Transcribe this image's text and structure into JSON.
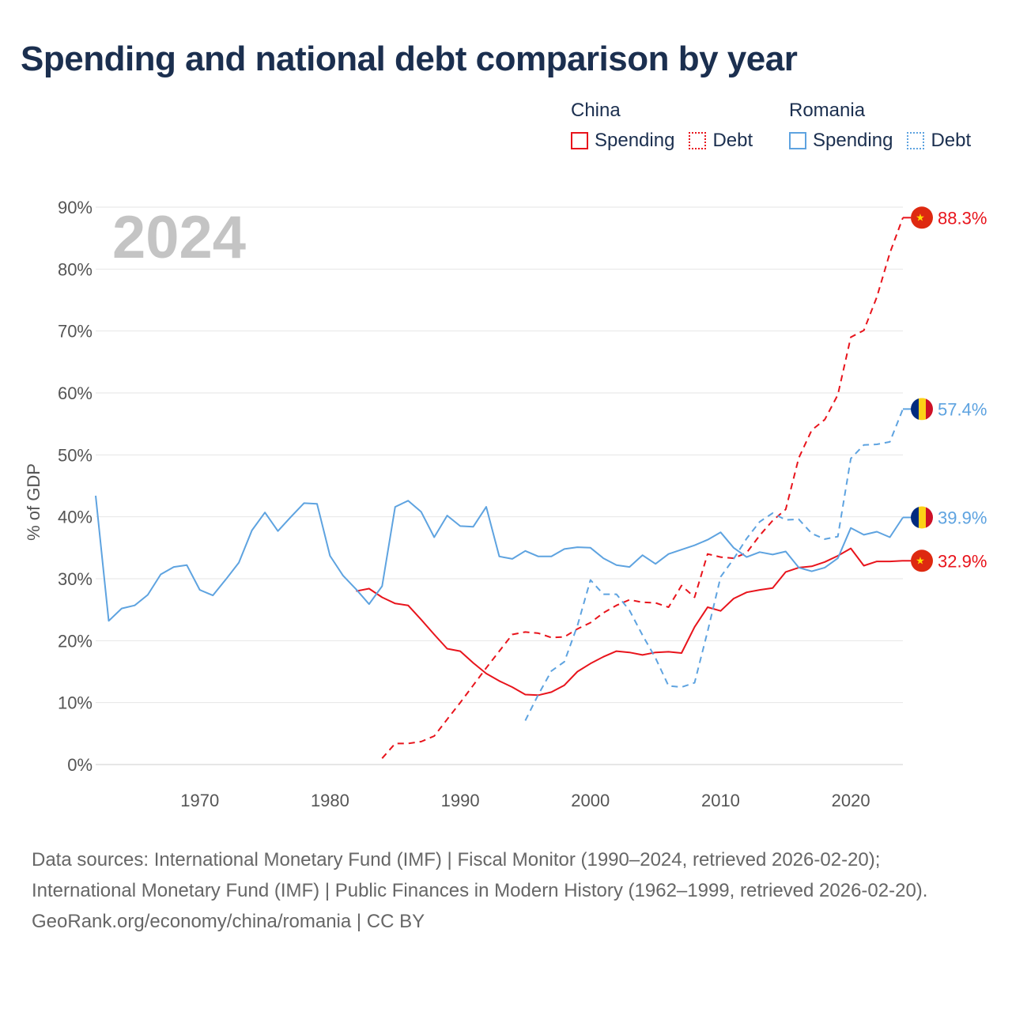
{
  "title": "Spending and national debt comparison by year",
  "legend": {
    "china": {
      "title": "China",
      "spending_label": "Spending",
      "debt_label": "Debt"
    },
    "romania": {
      "title": "Romania",
      "spending_label": "Spending",
      "debt_label": "Debt"
    }
  },
  "colors": {
    "china": "#e8141c",
    "romania": "#5ea3e0"
  },
  "chart_data": {
    "type": "line",
    "title": "Spending and national debt comparison by year",
    "year_label": "2024",
    "ylabel": "% of GDP",
    "xlabel": "",
    "xlim": [
      1962,
      2024
    ],
    "ylim": [
      0,
      90
    ],
    "x_ticks": [
      1970,
      1980,
      1990,
      2000,
      2010,
      2020
    ],
    "x_tick_labels": [
      "1970",
      "1980",
      "1990",
      "2000",
      "2010",
      "2020"
    ],
    "y_ticks": [
      0,
      10,
      20,
      30,
      40,
      50,
      60,
      70,
      80,
      90
    ],
    "y_tick_labels": [
      "0%",
      "10%",
      "20%",
      "30%",
      "40%",
      "50%",
      "60%",
      "70%",
      "80%",
      "90%"
    ],
    "grid": true,
    "series": [
      {
        "name": "China Spending",
        "country": "china",
        "style": "solid",
        "end_label": "32.9%",
        "x": [
          1982,
          1983,
          1984,
          1985,
          1986,
          1987,
          1988,
          1989,
          1990,
          1991,
          1992,
          1993,
          1994,
          1995,
          1996,
          1997,
          1998,
          1999,
          2000,
          2001,
          2002,
          2003,
          2004,
          2005,
          2006,
          2007,
          2008,
          2009,
          2010,
          2011,
          2012,
          2013,
          2014,
          2015,
          2016,
          2017,
          2018,
          2019,
          2020,
          2021,
          2022,
          2023,
          2024
        ],
        "values": [
          28.0,
          28.4,
          27.0,
          26.0,
          25.7,
          23.4,
          21.0,
          18.7,
          18.3,
          16.4,
          14.7,
          13.5,
          12.5,
          11.3,
          11.2,
          11.7,
          12.8,
          15.0,
          16.3,
          17.4,
          18.3,
          18.1,
          17.7,
          18.1,
          18.2,
          18.0,
          22.2,
          25.4,
          24.8,
          26.8,
          27.8,
          28.2,
          28.5,
          31.1,
          31.8,
          32.0,
          32.7,
          33.7,
          34.9,
          32.1,
          32.8,
          32.8,
          32.9
        ]
      },
      {
        "name": "China Debt",
        "country": "china",
        "style": "dashed",
        "end_label": "88.3%",
        "x": [
          1984,
          1985,
          1986,
          1987,
          1988,
          1989,
          1990,
          1991,
          1992,
          1993,
          1994,
          1995,
          1996,
          1997,
          1998,
          1999,
          2000,
          2001,
          2002,
          2003,
          2004,
          2005,
          2006,
          2007,
          2008,
          2009,
          2010,
          2011,
          2012,
          2013,
          2014,
          2015,
          2016,
          2017,
          2018,
          2019,
          2020,
          2021,
          2022,
          2023,
          2024
        ],
        "values": [
          1.0,
          3.4,
          3.4,
          3.7,
          4.6,
          7.3,
          10.0,
          12.8,
          15.6,
          18.3,
          21.0,
          21.4,
          21.2,
          20.5,
          20.6,
          21.9,
          22.9,
          24.5,
          25.7,
          26.6,
          26.2,
          26.1,
          25.4,
          28.9,
          27.0,
          34.0,
          33.5,
          33.3,
          34.2,
          37.0,
          39.4,
          41.2,
          49.5,
          54.0,
          55.7,
          59.7,
          69.0,
          70.1,
          75.5,
          82.6,
          88.3
        ]
      },
      {
        "name": "Romania Spending",
        "country": "romania",
        "style": "solid",
        "end_label": "39.9%",
        "x": [
          1962,
          1963,
          1964,
          1965,
          1966,
          1967,
          1968,
          1969,
          1970,
          1971,
          1972,
          1973,
          1974,
          1975,
          1976,
          1977,
          1978,
          1979,
          1980,
          1981,
          1982,
          1983,
          1984,
          1985,
          1986,
          1987,
          1988,
          1989,
          1990,
          1991,
          1992,
          1993,
          1994,
          1995,
          1996,
          1997,
          1998,
          1999,
          2000,
          2001,
          2002,
          2003,
          2004,
          2005,
          2006,
          2007,
          2008,
          2009,
          2010,
          2011,
          2012,
          2013,
          2014,
          2015,
          2016,
          2017,
          2018,
          2019,
          2020,
          2021,
          2022,
          2023,
          2024
        ],
        "values": [
          43.4,
          23.2,
          25.2,
          25.7,
          27.4,
          30.7,
          31.9,
          32.2,
          28.2,
          27.3,
          29.9,
          32.6,
          37.8,
          40.7,
          37.7,
          40.0,
          42.2,
          42.1,
          33.7,
          30.5,
          28.3,
          25.9,
          28.8,
          41.6,
          42.6,
          40.8,
          36.7,
          40.2,
          38.5,
          38.4,
          41.6,
          33.6,
          33.2,
          34.5,
          33.6,
          33.6,
          34.8,
          35.1,
          35.0,
          33.3,
          32.2,
          31.9,
          33.8,
          32.4,
          34.0,
          34.7,
          35.4,
          36.3,
          37.5,
          35.0,
          33.5,
          34.3,
          33.9,
          34.4,
          31.8,
          31.2,
          31.8,
          33.3,
          38.2,
          37.1,
          37.6,
          36.7,
          39.9
        ]
      },
      {
        "name": "Romania Debt",
        "country": "romania",
        "style": "dashed",
        "end_label": "57.4%",
        "x": [
          1995,
          1996,
          1997,
          1998,
          1999,
          2000,
          2001,
          2002,
          2003,
          2004,
          2005,
          2006,
          2007,
          2008,
          2009,
          2010,
          2011,
          2012,
          2013,
          2014,
          2015,
          2016,
          2017,
          2018,
          2019,
          2020,
          2021,
          2022,
          2023,
          2024
        ],
        "values": [
          7.1,
          11.3,
          15.1,
          16.6,
          22.4,
          29.8,
          27.5,
          27.5,
          24.9,
          20.9,
          17.2,
          12.7,
          12.5,
          13.2,
          21.5,
          30.3,
          33.2,
          36.5,
          39.2,
          40.6,
          39.5,
          39.6,
          37.3,
          36.4,
          36.8,
          49.4,
          51.6,
          51.7,
          52.1,
          57.4
        ]
      }
    ]
  },
  "footer": {
    "sources": "Data sources: International Monetary Fund (IMF) | Fiscal Monitor (1990–2024, retrieved 2026-02-20); International Monetary Fund (IMF) | Public Finances in Modern History (1962–1999, retrieved 2026-02-20).",
    "credit": "GeoRank.org/economy/china/romania | CC BY"
  }
}
